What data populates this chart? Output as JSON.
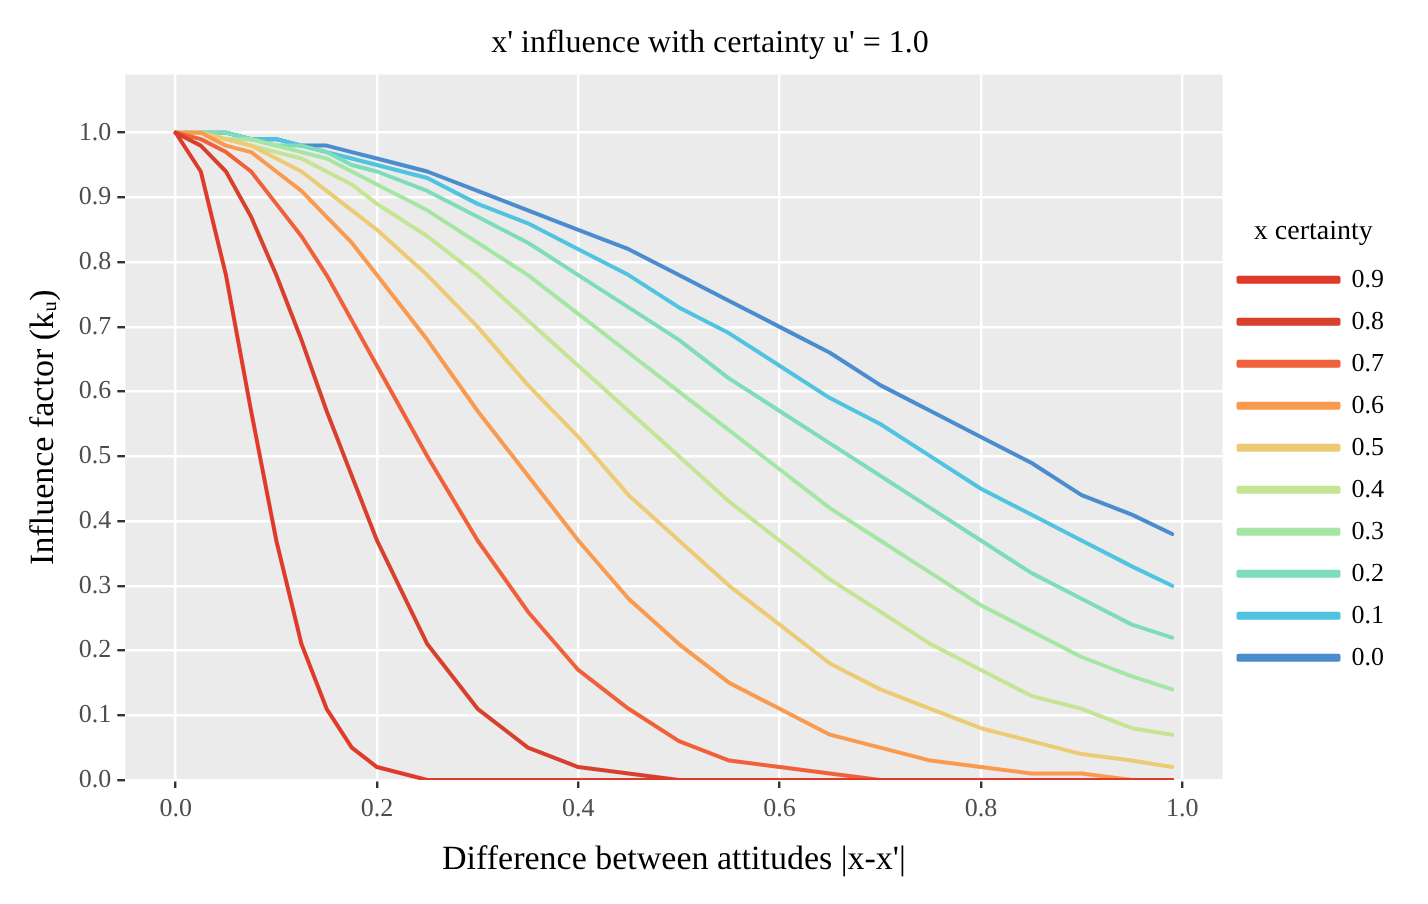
{
  "chart_data": {
    "type": "line",
    "title": "x' influence with certainty u' = 1.0",
    "xlabel": "Difference between attitudes |x-x'|",
    "ylabel": "Influence factor (kᵤ)",
    "legend_title": "x certainty",
    "legend": "right",
    "grid": true,
    "marker": "none",
    "line_style": "solid",
    "x": [
      0,
      0.025,
      0.05,
      0.075,
      0.1,
      0.125,
      0.15,
      0.175,
      0.2,
      0.25,
      0.3,
      0.35,
      0.4,
      0.45,
      0.5,
      0.55,
      0.6,
      0.65,
      0.7,
      0.75,
      0.8,
      0.85,
      0.9,
      0.95,
      0.99
    ],
    "xlim": [
      -0.05,
      1.04
    ],
    "xticks": [
      {
        "value": 0,
        "label": "0.0"
      },
      {
        "value": 0.2,
        "label": "0.2"
      },
      {
        "value": 0.4,
        "label": "0.4"
      },
      {
        "value": 0.6,
        "label": "0.6"
      },
      {
        "value": 0.8,
        "label": "0.8"
      },
      {
        "value": 1,
        "label": "1.0"
      }
    ],
    "ylim": [
      0,
      1.09
    ],
    "yticks": [
      {
        "value": 0,
        "label": "0.0"
      },
      {
        "value": 0.1,
        "label": "0.1"
      },
      {
        "value": 0.2,
        "label": "0.2"
      },
      {
        "value": 0.3,
        "label": "0.3"
      },
      {
        "value": 0.4,
        "label": "0.4"
      },
      {
        "value": 0.5,
        "label": "0.5"
      },
      {
        "value": 0.6,
        "label": "0.6"
      },
      {
        "value": 0.7,
        "label": "0.7"
      },
      {
        "value": 0.8,
        "label": "0.8"
      },
      {
        "value": 0.9,
        "label": "0.9"
      },
      {
        "value": 1,
        "label": "1.0"
      }
    ],
    "series": [
      {
        "name": "0.9",
        "color": "#e03a2b",
        "values": [
          1,
          0.94,
          0.78,
          0.57,
          0.37,
          0.21,
          0.11,
          0.05,
          0.02,
          0,
          0,
          0,
          0,
          0,
          0,
          0,
          0,
          0,
          0,
          0,
          0,
          0,
          0,
          0,
          0
        ]
      },
      {
        "name": "0.8",
        "color": "#d8402e",
        "values": [
          1,
          0.98,
          0.94,
          0.87,
          0.78,
          0.68,
          0.57,
          0.47,
          0.37,
          0.21,
          0.11,
          0.05,
          0.02,
          0.01,
          0,
          0,
          0,
          0,
          0,
          0,
          0,
          0,
          0,
          0,
          0
        ]
      },
      {
        "name": "0.7",
        "color": "#f0603a",
        "values": [
          1,
          0.99,
          0.97,
          0.94,
          0.89,
          0.84,
          0.78,
          0.71,
          0.64,
          0.5,
          0.37,
          0.26,
          0.17,
          0.11,
          0.06,
          0.03,
          0.02,
          0.01,
          0,
          0,
          0,
          0,
          0,
          0,
          0
        ]
      },
      {
        "name": "0.6",
        "color": "#f99a4e",
        "values": [
          1,
          1,
          0.98,
          0.97,
          0.94,
          0.91,
          0.87,
          0.83,
          0.78,
          0.68,
          0.57,
          0.47,
          0.37,
          0.28,
          0.21,
          0.15,
          0.11,
          0.07,
          0.05,
          0.03,
          0.02,
          0.01,
          0.01,
          0,
          0
        ]
      },
      {
        "name": "0.5",
        "color": "#eccb74",
        "values": [
          1,
          1,
          0.99,
          0.98,
          0.96,
          0.94,
          0.91,
          0.88,
          0.85,
          0.78,
          0.7,
          0.61,
          0.53,
          0.44,
          0.37,
          0.3,
          0.24,
          0.18,
          0.14,
          0.11,
          0.08,
          0.06,
          0.04,
          0.03,
          0.02
        ]
      },
      {
        "name": "0.4",
        "color": "#c5e494",
        "values": [
          1,
          1,
          0.99,
          0.98,
          0.97,
          0.96,
          0.94,
          0.92,
          0.89,
          0.84,
          0.78,
          0.71,
          0.64,
          0.57,
          0.5,
          0.43,
          0.37,
          0.31,
          0.26,
          0.21,
          0.17,
          0.13,
          0.11,
          0.08,
          0.07
        ]
      },
      {
        "name": "0.3",
        "color": "#a6e6a4",
        "values": [
          1,
          1,
          0.99,
          0.99,
          0.98,
          0.97,
          0.96,
          0.94,
          0.92,
          0.88,
          0.83,
          0.78,
          0.72,
          0.66,
          0.6,
          0.54,
          0.48,
          0.42,
          0.37,
          0.32,
          0.27,
          0.23,
          0.19,
          0.16,
          0.14
        ]
      },
      {
        "name": "0.2",
        "color": "#7fdcb9",
        "values": [
          1,
          1,
          1,
          0.99,
          0.98,
          0.98,
          0.97,
          0.95,
          0.94,
          0.91,
          0.87,
          0.83,
          0.78,
          0.73,
          0.68,
          0.62,
          0.57,
          0.52,
          0.47,
          0.42,
          0.37,
          0.32,
          0.28,
          0.24,
          0.22
        ]
      },
      {
        "name": "0.1",
        "color": "#4fc3df",
        "values": [
          1,
          1,
          1,
          0.99,
          0.99,
          0.98,
          0.97,
          0.96,
          0.95,
          0.93,
          0.89,
          0.86,
          0.82,
          0.78,
          0.73,
          0.69,
          0.64,
          0.59,
          0.55,
          0.5,
          0.45,
          0.41,
          0.37,
          0.33,
          0.3
        ]
      },
      {
        "name": "0.0",
        "color": "#4a8cce",
        "values": [
          1,
          1,
          1,
          0.99,
          0.99,
          0.98,
          0.98,
          0.97,
          0.96,
          0.94,
          0.91,
          0.88,
          0.85,
          0.82,
          0.78,
          0.74,
          0.7,
          0.66,
          0.61,
          0.57,
          0.53,
          0.49,
          0.44,
          0.41,
          0.38
        ]
      }
    ]
  }
}
